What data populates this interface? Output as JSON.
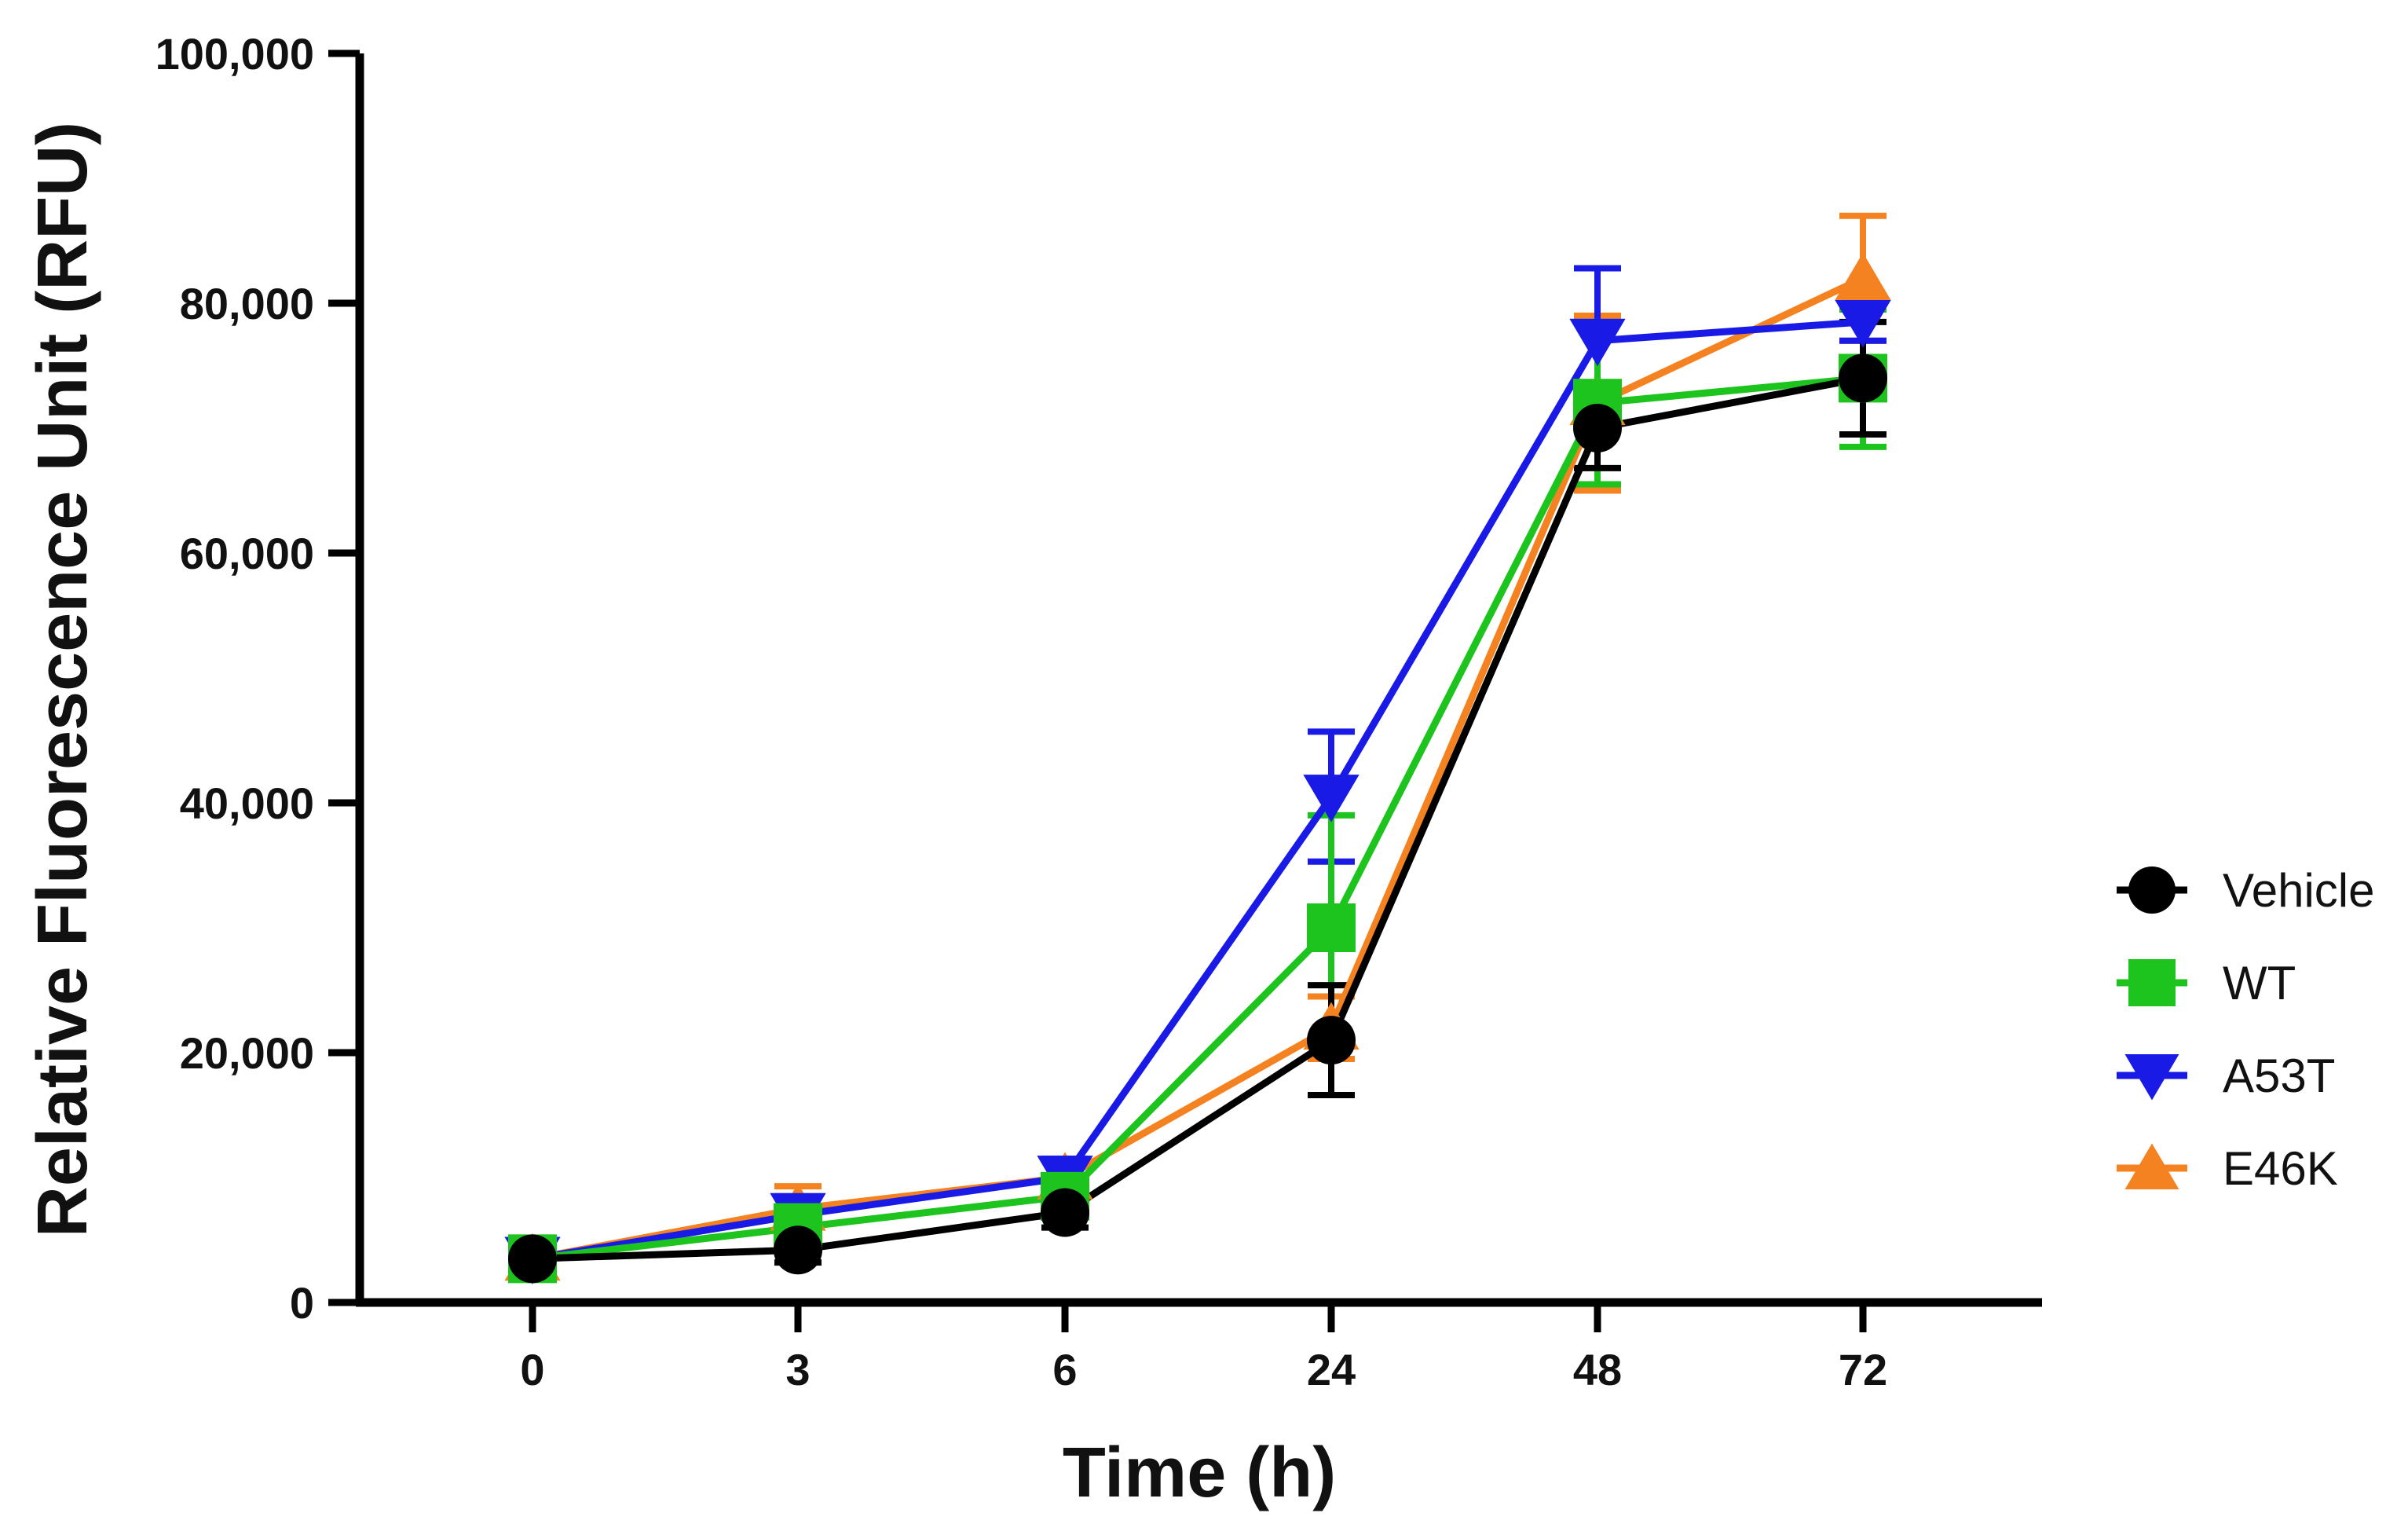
{
  "chart_data": {
    "type": "line",
    "title": "",
    "xlabel": "Time (h)",
    "ylabel": "Relative Fluorescence Unit (RFU)",
    "categories": [
      "0",
      "3",
      "6",
      "24",
      "48",
      "72"
    ],
    "ylim": [
      0,
      100000
    ],
    "yticks": [
      0,
      20000,
      40000,
      60000,
      80000,
      100000
    ],
    "ytick_labels": [
      "0",
      "20,000",
      "40,000",
      "60,000",
      "80,000",
      "100,000"
    ],
    "grid": false,
    "legend_position": "right",
    "series": [
      {
        "name": "E46K",
        "color": "#f58220",
        "marker": "triangle-up",
        "values": [
          3500,
          7500,
          10000,
          22000,
          72000,
          82000
        ],
        "errors": [
          800,
          1800,
          1500,
          2500,
          7000,
          5000
        ]
      },
      {
        "name": "A53T",
        "color": "#1a1ae6",
        "marker": "triangle-down",
        "values": [
          3500,
          7000,
          10000,
          40500,
          77000,
          78500
        ],
        "errors": [
          800,
          1500,
          1500,
          5200,
          5800,
          1500
        ]
      },
      {
        "name": "WT",
        "color": "#1ec41e",
        "marker": "square",
        "values": [
          3500,
          6000,
          8500,
          30000,
          72000,
          74000
        ],
        "errors": [
          800,
          1500,
          1500,
          9000,
          6500,
          5500
        ]
      },
      {
        "name": "Vehicle",
        "color": "#000000",
        "marker": "circle",
        "values": [
          3500,
          4200,
          7200,
          21000,
          70000,
          74000
        ],
        "errors": [
          600,
          1000,
          1200,
          4400,
          3200,
          4500
        ]
      }
    ],
    "legend_order": [
      "Vehicle",
      "WT",
      "A53T",
      "E46K"
    ]
  }
}
